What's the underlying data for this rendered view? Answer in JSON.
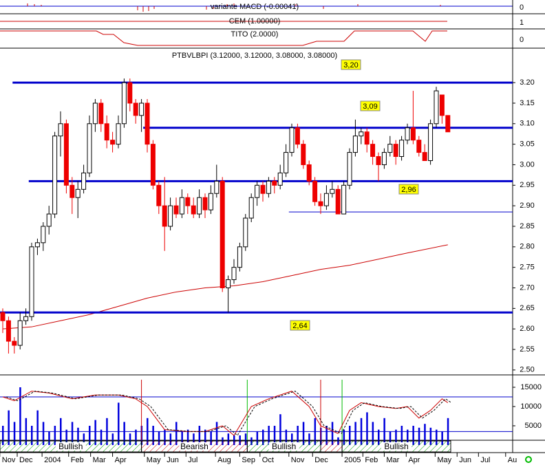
{
  "chart_data": {
    "type": "candlestick",
    "title": "PTBVLBPI (3.12000, 3.12000, 3.08000, 3.08000)",
    "panels": [
      {
        "label": "variante MACD (-0.00041)",
        "tick": "0"
      },
      {
        "label": "CEM (1.00000)",
        "tick": "1"
      },
      {
        "label": "TITO (2.0000)",
        "tick": "0"
      }
    ],
    "ohlc": [
      [
        2.64,
        2.65,
        2.59,
        2.62
      ],
      [
        2.62,
        2.63,
        2.54,
        2.57
      ],
      [
        2.57,
        2.58,
        2.54,
        2.56
      ],
      [
        2.56,
        2.64,
        2.55,
        2.62
      ],
      [
        2.62,
        2.65,
        2.61,
        2.63
      ],
      [
        2.63,
        2.81,
        2.62,
        2.8
      ],
      [
        2.8,
        2.82,
        2.78,
        2.81
      ],
      [
        2.81,
        2.86,
        2.79,
        2.85
      ],
      [
        2.85,
        2.9,
        2.83,
        2.88
      ],
      [
        2.88,
        3.08,
        2.87,
        3.07
      ],
      [
        3.07,
        3.13,
        3.02,
        3.1
      ],
      [
        3.1,
        3.11,
        2.93,
        2.95
      ],
      [
        2.95,
        2.97,
        2.88,
        2.92
      ],
      [
        2.92,
        2.96,
        2.87,
        2.94
      ],
      [
        2.94,
        3.0,
        2.93,
        2.98
      ],
      [
        2.98,
        3.12,
        2.97,
        3.1
      ],
      [
        3.1,
        3.16,
        3.08,
        3.15
      ],
      [
        3.15,
        3.16,
        3.08,
        3.1
      ],
      [
        3.1,
        3.12,
        3.04,
        3.06
      ],
      [
        3.06,
        3.08,
        3.03,
        3.05
      ],
      [
        3.05,
        3.12,
        3.04,
        3.1
      ],
      [
        3.1,
        3.21,
        3.09,
        3.2
      ],
      [
        3.2,
        3.21,
        3.13,
        3.15
      ],
      [
        3.15,
        3.16,
        3.1,
        3.12
      ],
      [
        3.12,
        3.16,
        3.08,
        3.15
      ],
      [
        3.15,
        3.16,
        3.03,
        3.05
      ],
      [
        3.05,
        3.06,
        2.94,
        2.95
      ],
      [
        2.95,
        2.96,
        2.88,
        2.9
      ],
      [
        2.9,
        2.97,
        2.79,
        2.85
      ],
      [
        2.85,
        2.92,
        2.84,
        2.9
      ],
      [
        2.9,
        2.92,
        2.87,
        2.88
      ],
      [
        2.88,
        2.94,
        2.87,
        2.92
      ],
      [
        2.92,
        2.93,
        2.88,
        2.9
      ],
      [
        2.9,
        2.92,
        2.87,
        2.88
      ],
      [
        2.88,
        2.94,
        2.87,
        2.92
      ],
      [
        2.92,
        2.93,
        2.87,
        2.89
      ],
      [
        2.89,
        2.95,
        2.88,
        2.93
      ],
      [
        2.93,
        3.0,
        2.92,
        2.96
      ],
      [
        2.96,
        2.97,
        2.69,
        2.7
      ],
      [
        2.7,
        2.73,
        2.64,
        2.72
      ],
      [
        2.72,
        2.77,
        2.71,
        2.75
      ],
      [
        2.75,
        2.81,
        2.74,
        2.8
      ],
      [
        2.8,
        2.88,
        2.79,
        2.87
      ],
      [
        2.87,
        2.93,
        2.86,
        2.92
      ],
      [
        2.92,
        2.96,
        2.9,
        2.95
      ],
      [
        2.95,
        2.96,
        2.91,
        2.93
      ],
      [
        2.93,
        2.97,
        2.92,
        2.96
      ],
      [
        2.96,
        2.97,
        2.93,
        2.95
      ],
      [
        2.95,
        3.0,
        2.94,
        2.98
      ],
      [
        2.98,
        3.05,
        2.97,
        3.03
      ],
      [
        3.03,
        3.1,
        3.02,
        3.09
      ],
      [
        3.09,
        3.1,
        3.04,
        3.05
      ],
      [
        3.05,
        3.06,
        2.99,
        3.0
      ],
      [
        3.0,
        3.01,
        2.95,
        2.96
      ],
      [
        2.96,
        2.97,
        2.9,
        2.91
      ],
      [
        2.91,
        2.93,
        2.88,
        2.9
      ],
      [
        2.9,
        2.95,
        2.89,
        2.93
      ],
      [
        2.93,
        2.96,
        2.92,
        2.94
      ],
      [
        2.94,
        2.95,
        2.88,
        2.88
      ],
      [
        2.88,
        2.96,
        2.88,
        2.95
      ],
      [
        2.95,
        3.04,
        2.94,
        3.03
      ],
      [
        3.03,
        3.11,
        3.02,
        3.07
      ],
      [
        3.07,
        3.09,
        3.05,
        3.08
      ],
      [
        3.08,
        3.09,
        3.03,
        3.05
      ],
      [
        3.05,
        3.06,
        3.0,
        3.02
      ],
      [
        3.02,
        3.03,
        2.96,
        3.0
      ],
      [
        3.0,
        3.04,
        2.99,
        3.03
      ],
      [
        3.03,
        3.07,
        3.02,
        3.05
      ],
      [
        3.05,
        3.06,
        3.0,
        3.02
      ],
      [
        3.02,
        3.07,
        3.01,
        3.06
      ],
      [
        3.06,
        3.1,
        3.05,
        3.09
      ],
      [
        3.09,
        3.18,
        3.05,
        3.06
      ],
      [
        3.06,
        3.07,
        3.02,
        3.03
      ],
      [
        3.03,
        3.05,
        3.01,
        3.01
      ],
      [
        3.01,
        3.11,
        3.0,
        3.1
      ],
      [
        3.1,
        3.19,
        3.09,
        3.18
      ],
      [
        3.17,
        3.17,
        3.1,
        3.12
      ],
      [
        3.12,
        3.12,
        3.08,
        3.08
      ]
    ],
    "volumes": [
      5000,
      9000,
      6000,
      15000,
      7000,
      5000,
      9000,
      6000,
      3500,
      5000,
      7000,
      4000,
      6000,
      4500,
      3000,
      5000,
      6500,
      4000,
      7000,
      3000,
      11000,
      6000,
      3000,
      4000,
      5000,
      7000,
      5000,
      3500,
      4000,
      3000,
      6000,
      3500,
      4000,
      3000,
      5000,
      4000,
      3500,
      6000,
      2000,
      3000,
      2500,
      2500,
      3000,
      2000,
      3500,
      4000,
      5000,
      5000,
      8000,
      4000,
      3000,
      5000,
      6000,
      3000,
      7000,
      4500,
      5000,
      6000,
      2000,
      4000,
      5000,
      6000,
      7000,
      8500,
      6000,
      4000,
      7000,
      3500,
      4000,
      5000,
      4000,
      5000,
      4500,
      5500,
      4500,
      4000,
      3500,
      7000
    ],
    "moving_average": {
      "x": [
        0,
        5,
        10,
        15,
        20,
        25,
        30,
        35,
        40,
        45,
        50,
        55,
        60,
        65,
        70,
        77
      ],
      "values": [
        2.6,
        2.605,
        2.62,
        2.635,
        2.655,
        2.675,
        2.69,
        2.7,
        2.705,
        2.715,
        2.73,
        2.745,
        2.755,
        2.77,
        2.785,
        2.805
      ]
    },
    "oscillator": {
      "x": [
        0,
        2,
        5,
        8,
        12,
        16,
        20,
        23,
        25,
        28,
        32,
        35,
        38,
        40,
        43,
        46,
        50,
        53,
        55,
        58,
        60,
        62,
        65,
        68,
        70,
        72,
        74,
        76,
        77
      ],
      "values": [
        12500,
        11500,
        14000,
        13500,
        12000,
        13000,
        13000,
        12000,
        10000,
        4000,
        3500,
        3500,
        5000,
        2500,
        10000,
        12000,
        14000,
        10000,
        5000,
        3000,
        9000,
        11000,
        10000,
        9500,
        10000,
        7000,
        9000,
        12000,
        11000
      ]
    },
    "oscillator_color": "#cc0000",
    "levels": [
      {
        "value": 3.2,
        "start": 1.7,
        "label": "3,20"
      },
      {
        "value": 3.09,
        "start": 24.3,
        "label": "3,09"
      },
      {
        "value": 2.96,
        "start": 4.5,
        "label": "2,96"
      },
      {
        "value": 2.885,
        "start": 49.5,
        "label": null
      },
      {
        "value": 2.64,
        "start": -0.5,
        "label": "2,64"
      }
    ],
    "level_color": "#0000cc",
    "signals": [
      {
        "x": 24,
        "color": "#cc0000"
      },
      {
        "x": 42.3,
        "color": "#00bb00"
      },
      {
        "x": 55,
        "color": "#cc0000"
      },
      {
        "x": 58.7,
        "color": "#00bb00"
      }
    ],
    "trend": [
      {
        "label": "Bullish",
        "start": -0.5,
        "end": 24
      },
      {
        "label": "Bearish",
        "start": 24,
        "end": 42.3
      },
      {
        "label": "Bullish",
        "start": 42.3,
        "end": 55
      },
      {
        "label": null,
        "start": 55,
        "end": 58.7
      },
      {
        "label": "Bullish",
        "start": 58.7,
        "end": 77.5
      }
    ],
    "ylim": [
      2.488,
      3.284
    ],
    "yticks": [
      {
        "value": 3.2,
        "label": "3.20"
      },
      {
        "value": 3.15,
        "label": "3.15"
      },
      {
        "value": 3.1,
        "label": "3.10"
      },
      {
        "value": 3.05,
        "label": "3.05"
      },
      {
        "value": 3.0,
        "label": "3.00"
      },
      {
        "value": 2.95,
        "label": "2.95"
      },
      {
        "value": 2.9,
        "label": "2.90"
      },
      {
        "value": 2.85,
        "label": "2.85"
      },
      {
        "value": 2.8,
        "label": "2.80"
      },
      {
        "value": 2.75,
        "label": "2.75"
      },
      {
        "value": 2.7,
        "label": "2.70"
      },
      {
        "value": 2.65,
        "label": "2.65"
      },
      {
        "value": 2.6,
        "label": "2.60"
      },
      {
        "value": 2.55,
        "label": "2.55"
      },
      {
        "value": 2.5,
        "label": "2.50"
      }
    ],
    "y2lim": [
      0,
      17500
    ],
    "y2ticks": [
      15000,
      10000,
      5000
    ],
    "volume_lines": [
      12500,
      3500
    ],
    "xticks": [
      {
        "value": -0.5,
        "label": "Nov"
      },
      {
        "value": 2.5,
        "label": "Dec"
      },
      {
        "value": 6.8,
        "label": "2004"
      },
      {
        "value": 11.4,
        "label": "Feb"
      },
      {
        "value": 15.2,
        "label": "Mar"
      },
      {
        "value": 19,
        "label": "Apr"
      },
      {
        "value": 24.5,
        "label": "May"
      },
      {
        "value": 28,
        "label": "Jun"
      },
      {
        "value": 31.7,
        "label": "Jul"
      },
      {
        "value": 36.8,
        "label": "Aug"
      },
      {
        "value": 41,
        "label": "Sep"
      },
      {
        "value": 44.5,
        "label": "Oct"
      },
      {
        "value": 49.5,
        "label": "Nov"
      },
      {
        "value": 53.6,
        "label": "Dec"
      },
      {
        "value": 58.7,
        "label": "2005"
      },
      {
        "value": 62.3,
        "label": "Feb"
      },
      {
        "value": 66,
        "label": "Mar"
      },
      {
        "value": 69.8,
        "label": "Apr"
      },
      {
        "value": 74.8,
        "label": "May"
      },
      {
        "value": 78.6,
        "label": "Jun"
      },
      {
        "value": 82.3,
        "label": "Jul"
      },
      {
        "value": 87,
        "label": "Au"
      }
    ]
  }
}
